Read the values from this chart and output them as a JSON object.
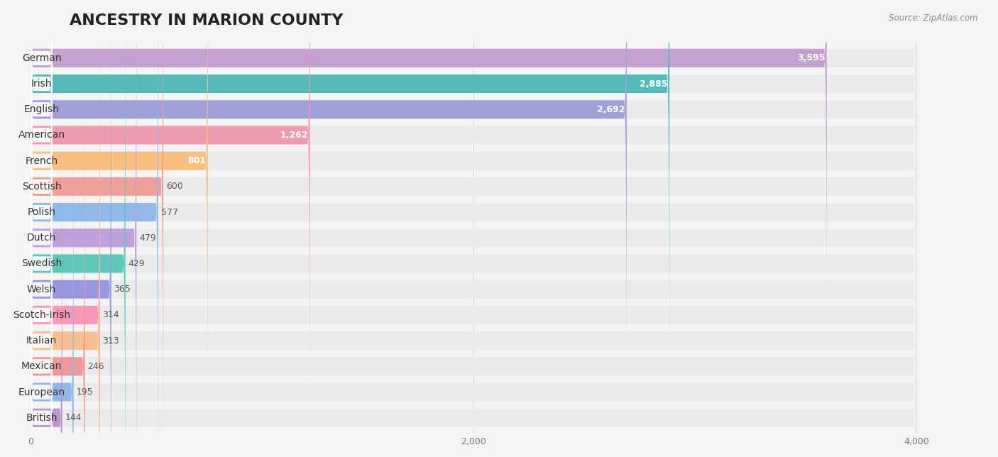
{
  "title": "ANCESTRY IN MARION COUNTY",
  "source": "Source: ZipAtlas.com",
  "categories": [
    "German",
    "Irish",
    "English",
    "American",
    "French",
    "Scottish",
    "Polish",
    "Dutch",
    "Swedish",
    "Welsh",
    "Scotch-Irish",
    "Italian",
    "Mexican",
    "European",
    "British"
  ],
  "values": [
    3595,
    2885,
    2692,
    1262,
    801,
    600,
    577,
    479,
    429,
    365,
    314,
    313,
    246,
    195,
    144
  ],
  "bar_colors": [
    "#c4a0d0",
    "#55bab8",
    "#a0a0d8",
    "#f09ab0",
    "#f8c080",
    "#f0a098",
    "#90b8e8",
    "#c0a0d8",
    "#60c8b8",
    "#9898e0",
    "#f898b8",
    "#f8c090",
    "#f09898",
    "#90b8e8",
    "#b898c8"
  ],
  "background_color": "#f4f4f4",
  "row_bg_color": "#ebebeb",
  "xlim_max": 4000,
  "xticks": [
    0,
    2000,
    4000
  ],
  "title_fontsize": 16,
  "label_fontsize": 10,
  "value_fontsize": 9,
  "figsize": [
    14.06,
    6.44
  ],
  "dpi": 100
}
